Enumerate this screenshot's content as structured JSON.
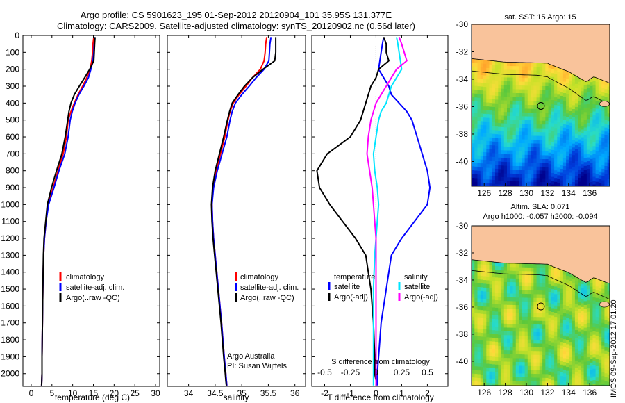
{
  "header": {
    "line1": "Argo profile: CS 5901623_195 01-Sep-2012 20120904_101 35.95S 131.377E",
    "line2": "Climatology: CARS2009. Satellite-adjusted climatology: synTS_20120902.nc (0.56d later)"
  },
  "colors": {
    "climatology": "#ff0000",
    "satellite": "#0000ff",
    "argo": "#000000",
    "adj_t": "#00e5ff",
    "adj_s": "#ff00ff",
    "land": "#f9c39b"
  },
  "stamp": "IMOS 09-Sep-2012 17:01:20",
  "chart_data": [
    {
      "type": "line",
      "xlabel": "temperature (deg C)",
      "xlim": [
        -2,
        31
      ],
      "xticks": [
        0,
        5,
        10,
        15,
        20,
        25,
        30
      ],
      "ylim": [
        2075,
        0
      ],
      "yticks": [
        0,
        100,
        200,
        300,
        400,
        500,
        600,
        700,
        800,
        900,
        1000,
        1100,
        1200,
        1300,
        1400,
        1500,
        1600,
        1700,
        1800,
        1900,
        2000
      ],
      "legend_labels": [
        "climatology",
        "satellite-adj. clim.",
        "Argo(..raw -QC)"
      ],
      "series": [
        {
          "color": "red",
          "x": [
            15.1,
            14.9,
            14.8,
            14.6,
            14.2,
            13.4,
            12.4,
            11.3,
            10.4,
            9.6,
            8.9,
            8.5,
            7.7,
            6.5,
            5.3,
            4.1,
            3.6,
            3.2,
            3.0,
            2.8,
            2.7,
            2.6,
            2.6,
            2.55,
            2.5
          ],
          "y": [
            10,
            50,
            100,
            150,
            200,
            250,
            300,
            350,
            400,
            450,
            500,
            600,
            700,
            800,
            900,
            1000,
            1100,
            1200,
            1300,
            1500,
            1700,
            1900,
            2000,
            2040,
            2070
          ]
        },
        {
          "color": "blue",
          "x": [
            15.4,
            15.2,
            15.1,
            14.9,
            14.4,
            13.8,
            12.7,
            11.5,
            10.6,
            9.9,
            9.4,
            8.9,
            8.1,
            6.7,
            5.5,
            4.2,
            3.6,
            3.2,
            3.0,
            2.8,
            2.7,
            2.6,
            2.6,
            2.55,
            2.5
          ],
          "y": [
            10,
            50,
            100,
            150,
            200,
            250,
            300,
            350,
            400,
            450,
            500,
            600,
            700,
            800,
            900,
            1000,
            1100,
            1200,
            1300,
            1500,
            1700,
            1900,
            2000,
            2040,
            2070
          ]
        },
        {
          "color": "black",
          "x": [
            15.4,
            15.3,
            15.2,
            15.1,
            14.1,
            12.9,
            11.6,
            10.4,
            9.6,
            9.1,
            8.8,
            8.2,
            7.4,
            6.1,
            4.9,
            3.9,
            3.5,
            3.1,
            2.95,
            2.8,
            2.7,
            2.6,
            2.6,
            2.55,
            2.5
          ],
          "y": [
            10,
            50,
            100,
            150,
            200,
            250,
            300,
            350,
            400,
            450,
            500,
            600,
            700,
            800,
            900,
            1000,
            1100,
            1200,
            1300,
            1500,
            1700,
            1900,
            2000,
            2040,
            2070
          ]
        }
      ]
    },
    {
      "type": "line",
      "xlabel": "salinity",
      "xlim": [
        33.6,
        36.2
      ],
      "xticks": [
        34,
        34.5,
        35,
        35.5,
        36
      ],
      "ylim": [
        2075,
        0
      ],
      "legend_labels": [
        "climatology",
        "satellite-adj. clim.",
        "Argo(..raw -QC)"
      ],
      "note_line1": "Argo Australia",
      "note_line2": "PI: Susan Wijffels",
      "series": [
        {
          "color": "red",
          "x": [
            35.47,
            35.45,
            35.44,
            35.42,
            35.35,
            35.2,
            35.08,
            34.95,
            34.84,
            34.78,
            34.74,
            34.68,
            34.6,
            34.52,
            34.46,
            34.44,
            34.45,
            34.47,
            34.5,
            34.56,
            34.62,
            34.67,
            34.7,
            34.71,
            34.72
          ],
          "y": [
            10,
            50,
            100,
            150,
            200,
            250,
            300,
            350,
            400,
            450,
            500,
            600,
            700,
            800,
            900,
            1000,
            1100,
            1200,
            1300,
            1500,
            1700,
            1900,
            2000,
            2040,
            2070
          ]
        },
        {
          "color": "blue",
          "x": [
            35.55,
            35.53,
            35.52,
            35.51,
            35.42,
            35.27,
            35.14,
            35.0,
            34.88,
            34.82,
            34.78,
            34.72,
            34.63,
            34.54,
            34.47,
            34.44,
            34.45,
            34.47,
            34.5,
            34.56,
            34.62,
            34.67,
            34.7,
            34.71,
            34.72
          ],
          "y": [
            10,
            50,
            100,
            150,
            200,
            250,
            300,
            350,
            400,
            450,
            500,
            600,
            700,
            800,
            900,
            1000,
            1100,
            1200,
            1300,
            1500,
            1700,
            1900,
            2000,
            2040,
            2070
          ]
        },
        {
          "color": "black",
          "x": [
            35.64,
            35.64,
            35.64,
            35.62,
            35.4,
            35.2,
            35.05,
            34.93,
            34.82,
            34.77,
            34.73,
            34.66,
            34.58,
            34.5,
            34.45,
            34.43,
            34.44,
            34.46,
            34.49,
            34.55,
            34.61,
            34.66,
            34.69,
            34.7,
            34.71
          ],
          "y": [
            10,
            50,
            100,
            150,
            200,
            250,
            300,
            350,
            400,
            450,
            500,
            600,
            700,
            800,
            900,
            1000,
            1100,
            1200,
            1300,
            1500,
            1700,
            1900,
            2000,
            2040,
            2070
          ]
        }
      ]
    },
    {
      "type": "line",
      "xlabel": "T difference from climatology",
      "xlabel_top": "S difference from climatology",
      "xlim": [
        -2.5,
        2.8
      ],
      "xticks": [
        -2,
        -1,
        0,
        1,
        2
      ],
      "top_ticks": [
        {
          "x": -2.0,
          "label": "-0.5"
        },
        {
          "x": -1.0,
          "label": "-0.25"
        },
        {
          "x": 0,
          "label": "0"
        },
        {
          "x": 1.0,
          "label": "0.25"
        },
        {
          "x": 2.0,
          "label": "0.5"
        }
      ],
      "ylim": [
        2075,
        0
      ],
      "legend_temperature": "temperature",
      "legend_salinity": "salinity",
      "legend_satellite": "satellite",
      "legend_argo": "Argo(-adj)",
      "series": [
        {
          "color": "blue",
          "x": [
            0.3,
            0.25,
            0.2,
            0.15,
            0.1,
            0.3,
            0.5,
            0.6,
            0.9,
            1.2,
            1.4,
            1.6,
            1.8,
            2.0,
            2.1,
            2.0,
            1.5,
            1.0,
            0.6,
            0.4,
            0.2,
            0.1,
            0.05,
            0.05,
            0.05
          ],
          "y": [
            10,
            50,
            100,
            150,
            200,
            250,
            300,
            350,
            400,
            450,
            500,
            600,
            700,
            800,
            900,
            1000,
            1100,
            1200,
            1300,
            1500,
            1700,
            1900,
            2000,
            2040,
            2070
          ]
        },
        {
          "color": "black",
          "x": [
            0.3,
            0.4,
            0.4,
            0.5,
            0.1,
            0.0,
            -0.2,
            -0.3,
            -0.4,
            -0.5,
            -0.6,
            -1.0,
            -1.9,
            -2.3,
            -2.2,
            -1.8,
            -1.3,
            -0.8,
            -0.4,
            -0.2,
            -0.1,
            -0.05,
            -0.05,
            0,
            0
          ],
          "y": [
            10,
            50,
            100,
            150,
            200,
            250,
            300,
            350,
            400,
            450,
            500,
            600,
            700,
            800,
            900,
            1000,
            1100,
            1200,
            1300,
            1500,
            1700,
            1900,
            2000,
            2040,
            2070
          ]
        },
        {
          "color": "cyan",
          "x": [
            0.8,
            0.85,
            0.9,
            0.95,
            1.0,
            0.8,
            0.6,
            0.5,
            0.4,
            0.2,
            0.1,
            0.0,
            -0.1,
            -0.05,
            0.05,
            0.1,
            0.05,
            0.0,
            -0.05,
            -0.1,
            -0.1,
            -0.1,
            -0.1,
            -0.1,
            -0.1
          ],
          "y": [
            10,
            50,
            100,
            150,
            200,
            250,
            300,
            350,
            400,
            450,
            500,
            600,
            700,
            800,
            900,
            1000,
            1100,
            1200,
            1300,
            1500,
            1700,
            1900,
            2000,
            2040,
            2070
          ]
        },
        {
          "color": "magenta",
          "x": [
            0.9,
            1.0,
            1.1,
            1.2,
            0.8,
            0.6,
            0.4,
            0.2,
            0.0,
            -0.1,
            -0.2,
            -0.3,
            -0.35,
            -0.25,
            -0.15,
            -0.1,
            -0.05,
            0,
            0,
            0,
            0,
            0,
            0,
            0,
            0
          ],
          "y": [
            10,
            50,
            100,
            150,
            200,
            250,
            300,
            350,
            400,
            450,
            500,
            600,
            700,
            800,
            900,
            1000,
            1100,
            1200,
            1300,
            1500,
            1700,
            1900,
            2000,
            2040,
            2070
          ]
        }
      ]
    },
    {
      "type": "heatmap",
      "title": "sat. SST: 15 Argo: 15",
      "xticks": [
        126,
        128,
        130,
        132,
        134,
        136
      ],
      "yticks": [
        -30,
        -32,
        -34,
        -36,
        -38,
        -40
      ],
      "xlim": [
        124.8,
        137.9
      ],
      "ylim": [
        -41.8,
        -30
      ],
      "marker": {
        "lon": 131.377,
        "lat": -35.95
      }
    },
    {
      "type": "heatmap",
      "title_line1": "Altim. SLA: 0.071",
      "title_line2": "Argo h1000: -0.057 h2000: -0.094",
      "xticks": [
        126,
        128,
        130,
        132,
        134,
        136
      ],
      "yticks": [
        -30,
        -32,
        -34,
        -36,
        -38,
        -40
      ],
      "xlim": [
        124.8,
        137.9
      ],
      "ylim": [
        -41.8,
        -30
      ],
      "marker": {
        "lon": 131.377,
        "lat": -35.95
      }
    }
  ]
}
